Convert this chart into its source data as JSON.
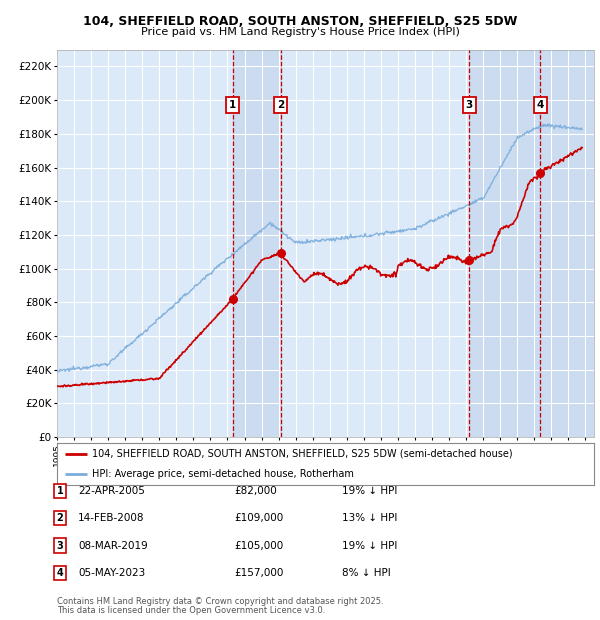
{
  "title": "104, SHEFFIELD ROAD, SOUTH ANSTON, SHEFFIELD, S25 5DW",
  "subtitle": "Price paid vs. HM Land Registry's House Price Index (HPI)",
  "ylim": [
    0,
    230000
  ],
  "yticks": [
    0,
    20000,
    40000,
    60000,
    80000,
    100000,
    120000,
    140000,
    160000,
    180000,
    200000,
    220000
  ],
  "xlim_start": 1995.0,
  "xlim_end": 2026.5,
  "legend_line1": "104, SHEFFIELD ROAD, SOUTH ANSTON, SHEFFIELD, S25 5DW (semi-detached house)",
  "legend_line2": "HPI: Average price, semi-detached house, Rotherham",
  "sale_points": [
    {
      "num": 1,
      "date": "22-APR-2005",
      "price": 82000,
      "pct": "19%",
      "x": 2005.3
    },
    {
      "num": 2,
      "date": "14-FEB-2008",
      "price": 109000,
      "pct": "13%",
      "x": 2008.12
    },
    {
      "num": 3,
      "date": "08-MAR-2019",
      "price": 105000,
      "pct": "19%",
      "x": 2019.19
    },
    {
      "num": 4,
      "date": "05-MAY-2023",
      "price": 157000,
      "pct": "8%",
      "x": 2023.35
    }
  ],
  "footer_line1": "Contains HM Land Registry data © Crown copyright and database right 2025.",
  "footer_line2": "This data is licensed under the Open Government Licence v3.0.",
  "red_color": "#cc0000",
  "blue_color": "#7aaddb",
  "background_plot": "#dce9f8",
  "shade_color": "#c8daf0"
}
